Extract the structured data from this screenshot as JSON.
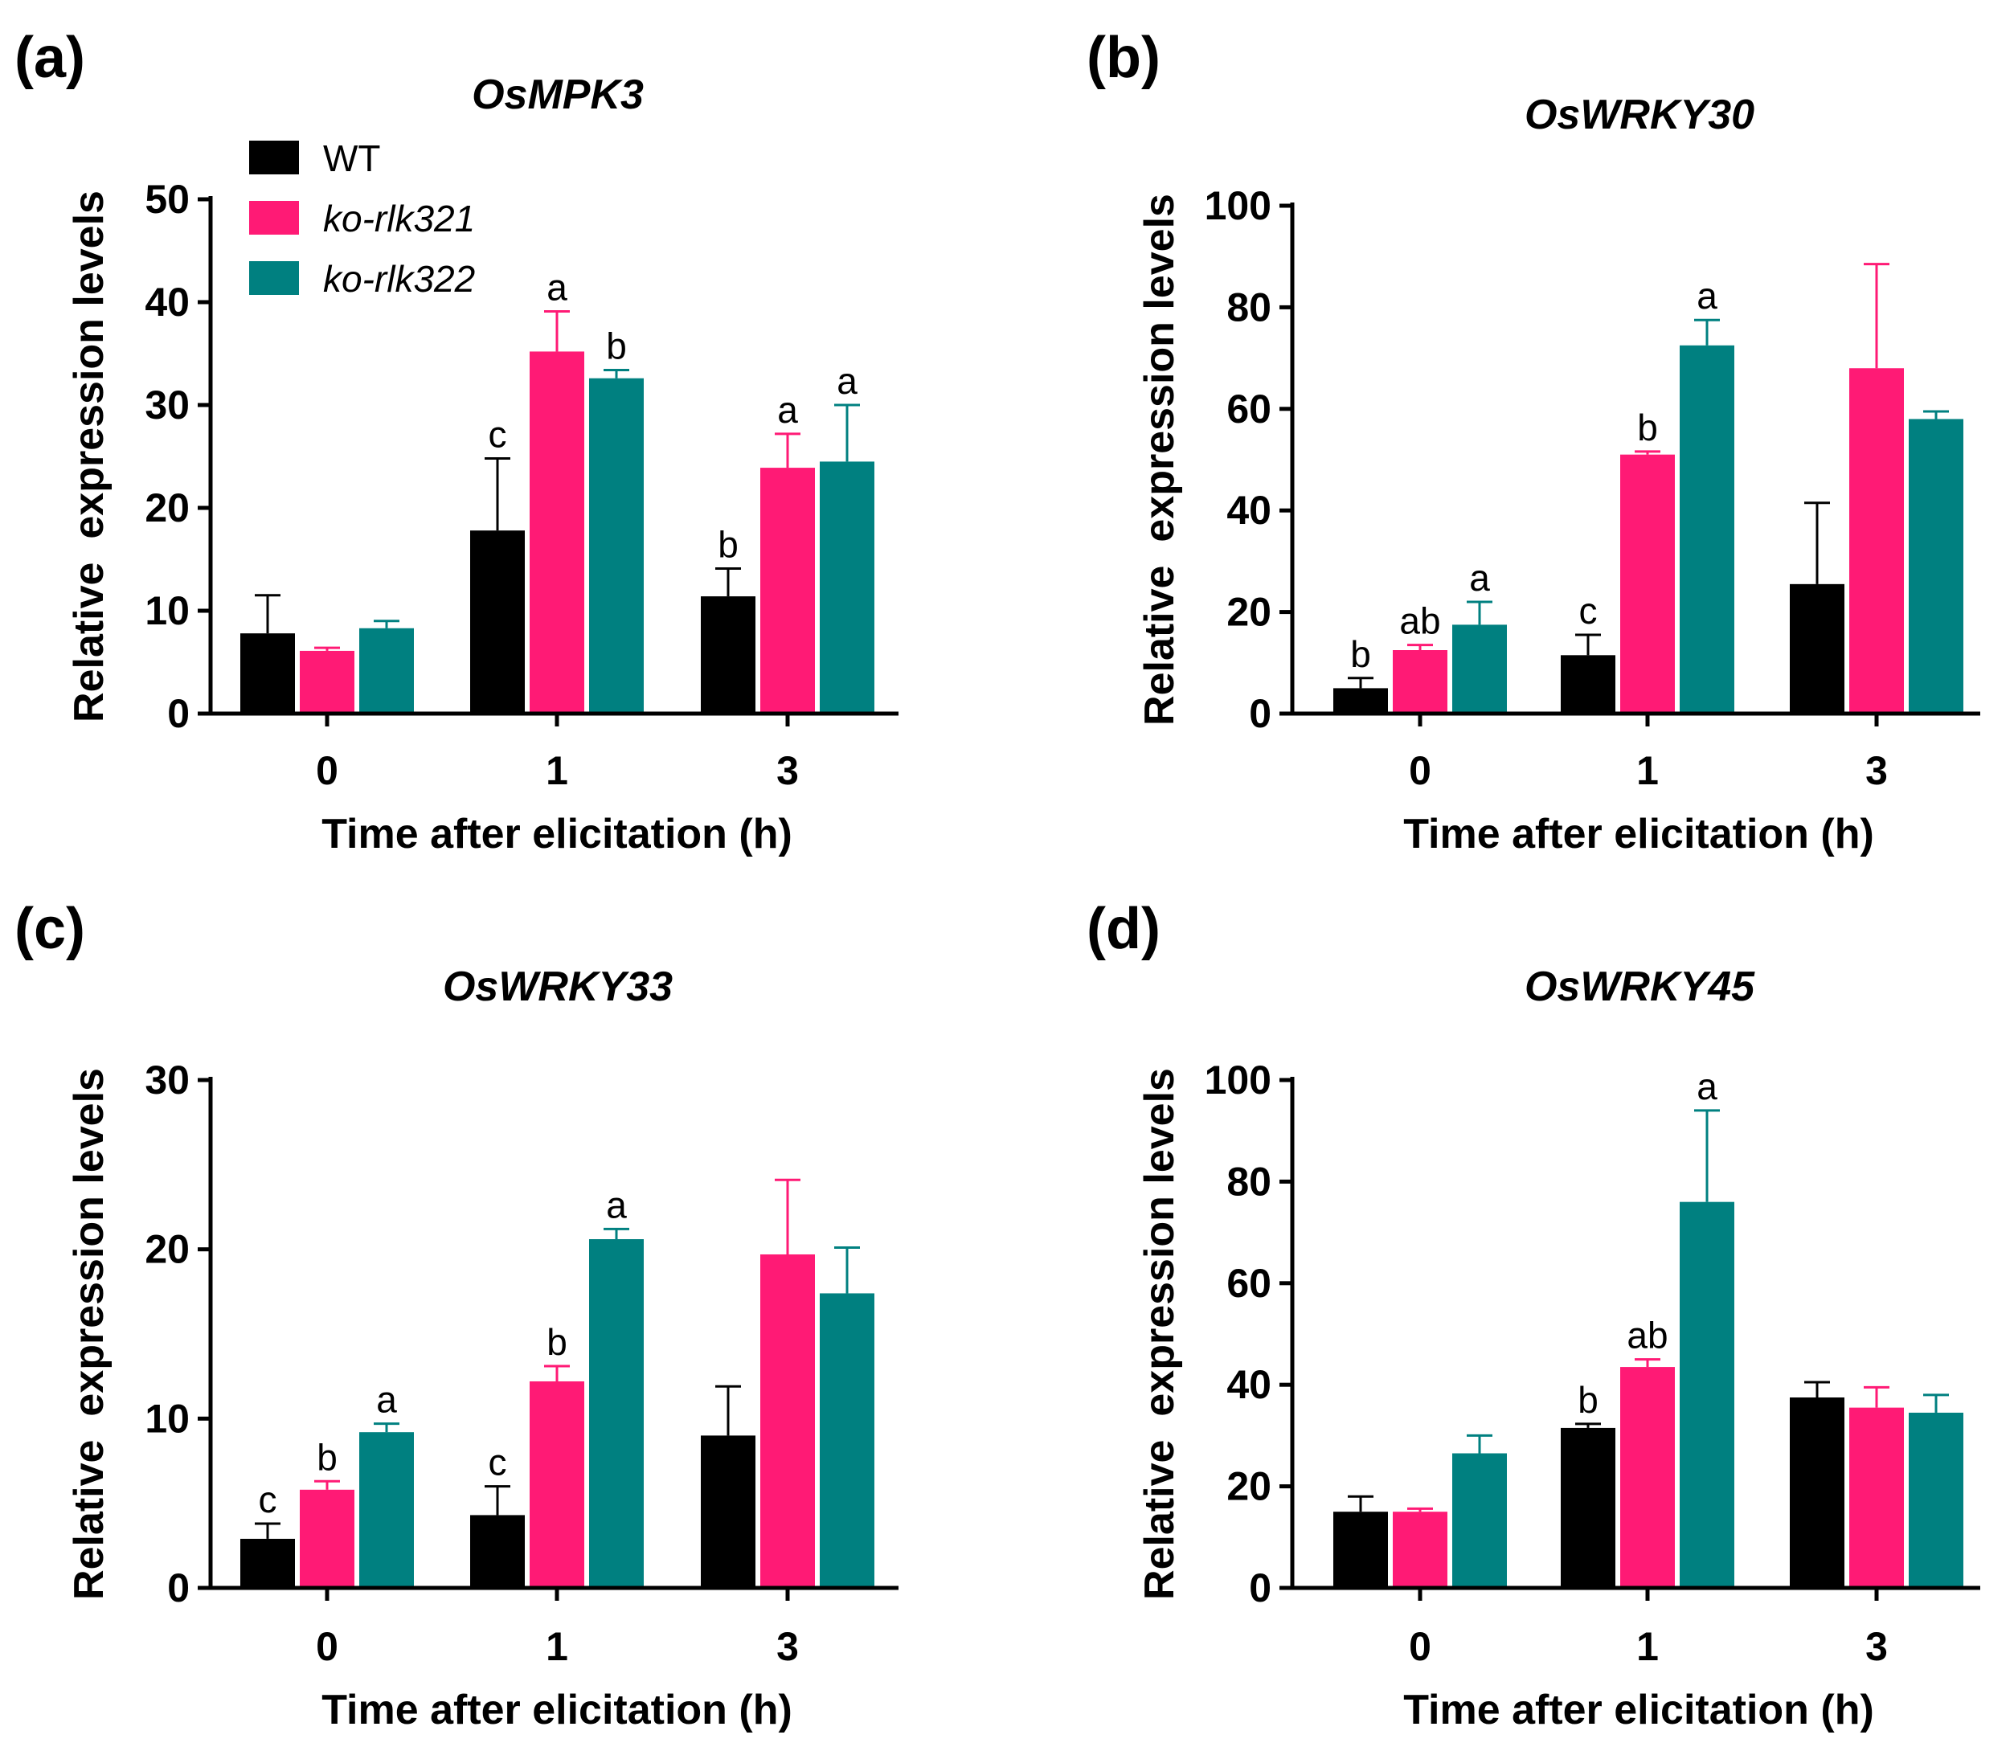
{
  "legend": [
    {
      "label": "WT",
      "italic": false
    },
    {
      "label": "ko-rlk321",
      "italic": true
    },
    {
      "label": "ko-rlk322",
      "italic": true
    }
  ],
  "colors": {
    "WT": "#000000",
    "ko-rlk321": "#ff1a75",
    "ko-rlk322": "#008080",
    "sig_muted": "#3a3a5c"
  },
  "chart_data": [
    {
      "panel": "(a)",
      "type": "bar",
      "title": "OsMPK3",
      "xlabel": "Time after elicitation (h)",
      "ylabel": "Relative  expression levels",
      "categories": [
        "0",
        "1",
        "3"
      ],
      "ylim": [
        0,
        50
      ],
      "yticks": [
        0,
        10,
        20,
        30,
        40,
        50
      ],
      "series": [
        {
          "name": "WT",
          "values": [
            7.8,
            17.8,
            11.4
          ],
          "errors": [
            3.7,
            7.0,
            2.7
          ],
          "labels": [
            "",
            "c",
            "b"
          ]
        },
        {
          "name": "ko-rlk321",
          "values": [
            6.1,
            35.2,
            23.9
          ],
          "errors": [
            0.3,
            3.9,
            3.3
          ],
          "labels": [
            "",
            "a",
            "a"
          ]
        },
        {
          "name": "ko-rlk322",
          "values": [
            8.3,
            32.6,
            24.5
          ],
          "errors": [
            0.7,
            0.8,
            5.5
          ],
          "labels": [
            "",
            "b",
            "a"
          ]
        }
      ]
    },
    {
      "panel": "(b)",
      "type": "bar",
      "title": "OsWRKY30",
      "xlabel": "Time after elicitation (h)",
      "ylabel": "Relative  expression levels",
      "categories": [
        "0",
        "1",
        "3"
      ],
      "ylim": [
        0,
        100
      ],
      "yticks": [
        0,
        20,
        40,
        60,
        80,
        100
      ],
      "series": [
        {
          "name": "WT",
          "values": [
            5.0,
            11.5,
            25.5
          ],
          "errors": [
            2.0,
            4.0,
            16.0
          ],
          "labels": [
            "b",
            "c",
            ""
          ]
        },
        {
          "name": "ko-rlk321",
          "values": [
            12.5,
            51.0,
            68.0
          ],
          "errors": [
            1.0,
            0.6,
            20.5
          ],
          "labels": [
            "ab",
            "b",
            ""
          ]
        },
        {
          "name": "ko-rlk322",
          "values": [
            17.5,
            72.5,
            58.0
          ],
          "errors": [
            4.5,
            5.0,
            1.5
          ],
          "labels": [
            "a",
            "a",
            ""
          ]
        }
      ]
    },
    {
      "panel": "(c)",
      "type": "bar",
      "title": "OsWRKY33",
      "xlabel": "Time after elicitation (h)",
      "ylabel": "Relative  expression levels",
      "categories": [
        "0",
        "1",
        "3"
      ],
      "ylim": [
        0,
        30
      ],
      "yticks": [
        0,
        10,
        20,
        30
      ],
      "series": [
        {
          "name": "WT",
          "values": [
            2.9,
            4.3,
            9.0
          ],
          "errors": [
            0.9,
            1.7,
            2.9
          ],
          "labels": [
            "c",
            "c",
            ""
          ]
        },
        {
          "name": "ko-rlk321",
          "values": [
            5.8,
            12.2,
            19.7
          ],
          "errors": [
            0.5,
            0.9,
            4.4
          ],
          "labels": [
            "b",
            "b",
            ""
          ]
        },
        {
          "name": "ko-rlk322",
          "values": [
            9.2,
            20.6,
            17.4
          ],
          "errors": [
            0.5,
            0.6,
            2.7
          ],
          "labels": [
            "a",
            "a",
            ""
          ]
        }
      ]
    },
    {
      "panel": "(d)",
      "type": "bar",
      "title": "OsWRKY45",
      "xlabel": "Time after elicitation (h)",
      "ylabel": "Relative  expression levels",
      "categories": [
        "0",
        "1",
        "3"
      ],
      "ylim": [
        0,
        100
      ],
      "yticks": [
        0,
        20,
        40,
        60,
        80,
        100
      ],
      "series": [
        {
          "name": "WT",
          "values": [
            15.0,
            31.5,
            37.5
          ],
          "errors": [
            3.0,
            0.8,
            3.0
          ],
          "labels": [
            "",
            "b",
            ""
          ]
        },
        {
          "name": "ko-rlk321",
          "values": [
            15.0,
            43.5,
            35.5
          ],
          "errors": [
            0.6,
            1.5,
            4.0
          ],
          "labels": [
            "",
            "ab",
            ""
          ]
        },
        {
          "name": "ko-rlk322",
          "values": [
            26.5,
            76.0,
            34.5
          ],
          "errors": [
            3.5,
            18.0,
            3.5
          ],
          "labels": [
            "",
            "a",
            ""
          ]
        }
      ]
    }
  ]
}
